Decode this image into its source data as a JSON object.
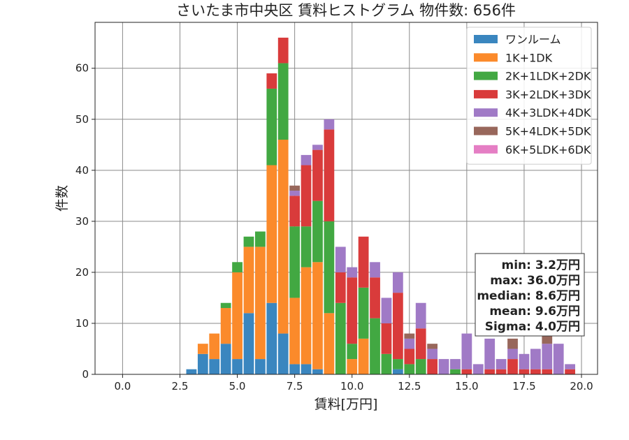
{
  "chart_data": {
    "type": "bar",
    "stacked": true,
    "title": "さいたま市中央区 賃料ヒストグラム 物件数: 656件",
    "xlabel": "賃料[万円]",
    "ylabel": "件数",
    "xlim": [
      -1.2,
      20.7
    ],
    "ylim": [
      0,
      69
    ],
    "grid": true,
    "legend_position": "top-right",
    "x_ticks": [
      "0.0",
      "2.5",
      "5.0",
      "7.5",
      "10.0",
      "12.5",
      "15.0",
      "17.5",
      "20.0"
    ],
    "y_ticks": [
      "0",
      "10",
      "20",
      "30",
      "40",
      "50",
      "60"
    ],
    "bin_width": 0.5,
    "x": [
      3.0,
      3.5,
      4.0,
      4.5,
      5.0,
      5.5,
      6.0,
      6.5,
      7.0,
      7.5,
      8.0,
      8.5,
      9.0,
      9.5,
      10.0,
      10.5,
      11.0,
      11.5,
      12.0,
      12.5,
      13.0,
      13.5,
      14.0,
      14.5,
      15.0,
      15.5,
      16.0,
      16.5,
      17.0,
      17.5,
      18.0,
      18.5,
      19.0,
      19.5
    ],
    "series": [
      {
        "name": "ワンルーム",
        "color": "#3a86bf",
        "values": [
          1,
          4,
          3,
          6,
          3,
          12,
          3,
          14,
          8,
          2,
          2,
          1,
          0,
          0,
          0,
          0,
          0,
          0,
          1,
          0,
          0,
          0,
          0,
          0,
          0,
          0,
          0,
          0,
          0,
          0,
          0,
          0,
          0,
          0
        ]
      },
      {
        "name": "1K+1DK",
        "color": "#fb8a2b",
        "values": [
          0,
          2,
          5,
          7,
          17,
          13,
          22,
          27,
          38,
          13,
          19,
          21,
          12,
          0,
          3,
          7,
          0,
          0,
          0,
          0,
          0,
          0,
          0,
          0,
          0,
          0,
          0,
          0,
          0,
          0,
          0,
          0,
          0,
          0
        ]
      },
      {
        "name": "2K+1LDK+2DK",
        "color": "#42a842",
        "values": [
          0,
          0,
          0,
          1,
          2,
          2,
          3,
          15,
          15,
          14,
          8,
          12,
          18,
          14,
          3,
          10,
          11,
          4,
          2,
          2,
          3,
          0,
          0,
          1,
          0,
          0,
          0,
          0,
          0,
          0,
          0,
          0,
          0,
          0
        ]
      },
      {
        "name": "3K+2LDK+3DK",
        "color": "#d93b3b",
        "values": [
          0,
          0,
          0,
          0,
          0,
          0,
          0,
          3,
          5,
          6,
          12,
          10,
          18,
          6,
          13,
          10,
          8,
          6,
          13,
          3,
          6,
          3,
          0,
          0,
          1,
          0,
          1,
          1,
          3,
          1,
          1,
          1,
          0,
          1
        ]
      },
      {
        "name": "4K+3LDK+4DK",
        "color": "#a07ac6",
        "values": [
          0,
          0,
          0,
          0,
          0,
          0,
          0,
          0,
          0,
          1,
          2,
          1,
          2,
          5,
          2,
          0,
          3,
          5,
          4,
          2,
          5,
          2,
          3,
          2,
          7,
          2,
          6,
          2,
          2,
          3,
          4,
          5,
          6,
          1
        ]
      },
      {
        "name": "5K+4LDK+5DK",
        "color": "#98675b",
        "values": [
          0,
          0,
          0,
          0,
          0,
          0,
          0,
          0,
          0,
          1,
          0,
          0,
          0,
          0,
          0,
          0,
          0,
          0,
          0,
          1,
          0,
          1,
          0,
          0,
          0,
          0,
          0,
          0,
          2,
          0,
          0,
          2,
          0,
          0
        ]
      },
      {
        "name": "6K+5LDK+6DK",
        "color": "#e57ec4",
        "values": [
          0,
          0,
          0,
          0,
          0,
          0,
          0,
          0,
          0,
          0,
          0,
          0,
          0,
          0,
          0,
          0,
          0,
          0,
          0,
          0,
          0,
          0,
          0,
          0,
          0,
          0,
          0,
          0,
          0,
          0,
          0,
          0,
          0,
          0
        ]
      }
    ],
    "stats": [
      "min: 3.2万円",
      "max: 36.0万円",
      "median: 8.6万円",
      "mean: 9.6万円",
      "Sigma: 4.0万円"
    ]
  }
}
